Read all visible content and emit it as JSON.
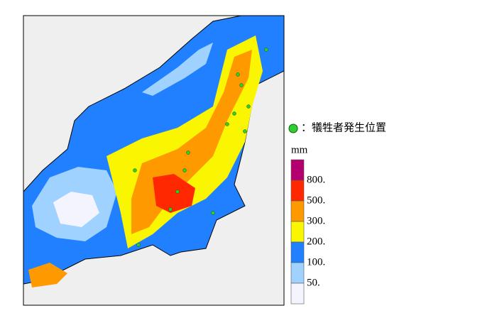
{
  "legend": {
    "marker_label": "：犠牲者発生位置",
    "marker_color": "#33cc33",
    "unit": "mm",
    "levels": [
      {
        "color": "#b4006e",
        "label": "800."
      },
      {
        "color": "#ff2800",
        "label": "500."
      },
      {
        "color": "#ff9900",
        "label": "300."
      },
      {
        "color": "#faf500",
        "label": "200."
      },
      {
        "color": "#2180ff",
        "label": "100."
      },
      {
        "color": "#a0d2ff",
        "label": "50."
      },
      {
        "color": "#f4f4ff",
        "label": null
      }
    ]
  }
}
